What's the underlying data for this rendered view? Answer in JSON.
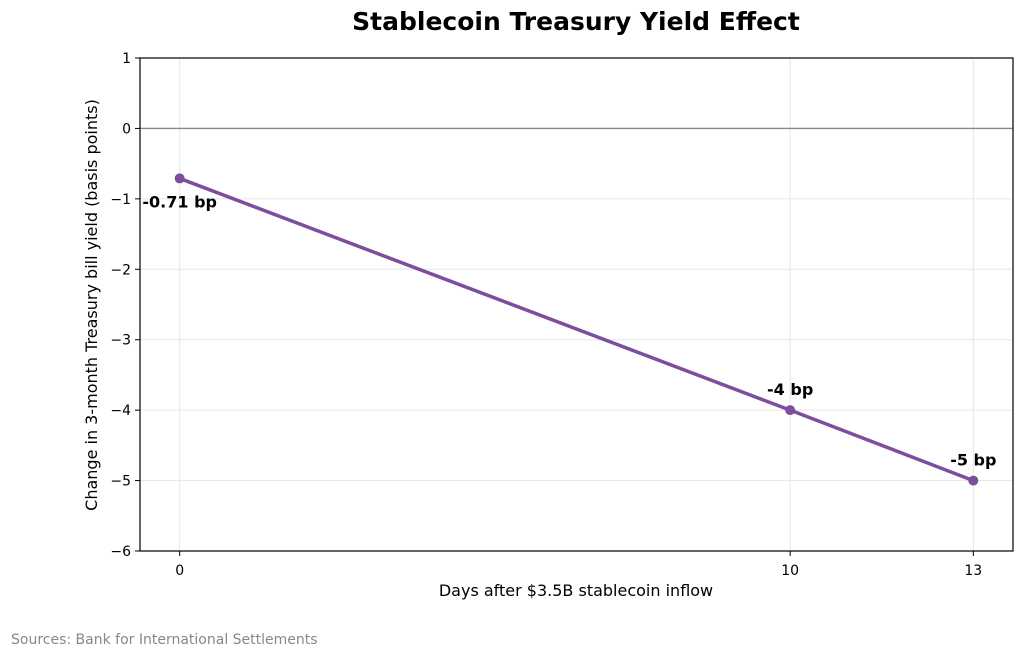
{
  "chart_data": {
    "type": "line",
    "title": "Stablecoin Treasury Yield Effect",
    "xlabel": "Days after $3.5B stablecoin inflow",
    "ylabel": "Change in 3-month Treasury bill yield (basis points)",
    "x": [
      0,
      10,
      13
    ],
    "series": [
      {
        "values": [
          -0.71,
          -4,
          -5
        ]
      }
    ],
    "data_labels": [
      "-0.71 bp",
      "-4 bp",
      "-5 bp"
    ],
    "x_ticks": [
      0,
      10,
      13
    ],
    "x_tick_labels": [
      "0",
      "10",
      "13"
    ],
    "y_ticks": [
      1,
      0,
      -1,
      -2,
      -3,
      -4,
      -5,
      -6
    ],
    "y_tick_labels": [
      "1",
      "0",
      "−1",
      "−2",
      "−3",
      "−4",
      "−5",
      "−6"
    ],
    "xlim": [
      -0.65,
      13.65
    ],
    "ylim": [
      -6,
      1
    ],
    "grid": true,
    "zero_line": true,
    "colors": {
      "line": "#7b4f9d",
      "grid": "#e6e6e6",
      "zero_line": "#888888",
      "source": "#888888"
    }
  },
  "source": "Sources: Bank for International Settlements"
}
